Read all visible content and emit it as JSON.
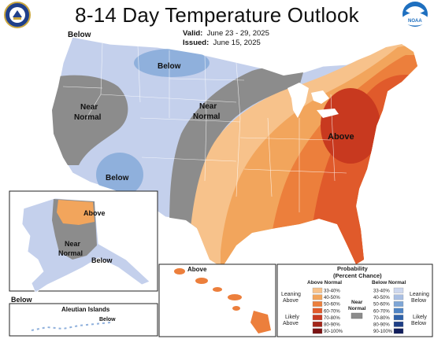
{
  "title": "8-14 Day Temperature Outlook",
  "valid_label": "Valid:",
  "valid_value": "June 23 - 29, 2025",
  "issued_label": "Issued:",
  "issued_value": "June 15, 2025",
  "logos": {
    "left": "doc-seal",
    "right": "noaa-logo",
    "right_text": "NOAA"
  },
  "map_labels": {
    "below_nw": "Below",
    "below_north": "Below",
    "near_west_1": "Near",
    "near_west_2": "Normal",
    "below_sw": "Below",
    "near_central_1": "Near",
    "near_central_2": "Normal",
    "above_east": "Above"
  },
  "alaska": {
    "above": "Above",
    "near_1": "Near",
    "near_2": "Normal",
    "below_se": "Below",
    "below_sw": "Below"
  },
  "aleutian": {
    "title": "Aleutian Islands",
    "below": "Below"
  },
  "hawaii": {
    "above": "Above"
  },
  "legend": {
    "title_1": "Probability",
    "title_2": "(Percent Chance)",
    "above_header": "Above Normal",
    "below_header": "Below Normal",
    "near_label_1": "Near",
    "near_label_2": "Normal",
    "leaning_above_1": "Leaning",
    "leaning_above_2": "Above",
    "likely_above_1": "Likely",
    "likely_above_2": "Above",
    "leaning_below_1": "Leaning",
    "leaning_below_2": "Below",
    "likely_below_1": "Likely",
    "likely_below_2": "Below",
    "above_bins": [
      "33-40%",
      "40-50%",
      "50-60%",
      "60-70%",
      "70-80%",
      "80-90%",
      "90-100%"
    ],
    "below_bins": [
      "33-40%",
      "40-50%",
      "50-60%",
      "60-70%",
      "70-80%",
      "80-90%",
      "90-100%"
    ],
    "above_colors": [
      "#f7c28b",
      "#f2a55c",
      "#ec7f3c",
      "#e05a2b",
      "#c8391f",
      "#a32519",
      "#7a1212"
    ],
    "below_colors": [
      "#cdd7ee",
      "#a9bfe3",
      "#7ea6d6",
      "#4f84c4",
      "#2f62aa",
      "#1e3f86",
      "#111e5c"
    ],
    "near_color": "#8c8c8c"
  }
}
